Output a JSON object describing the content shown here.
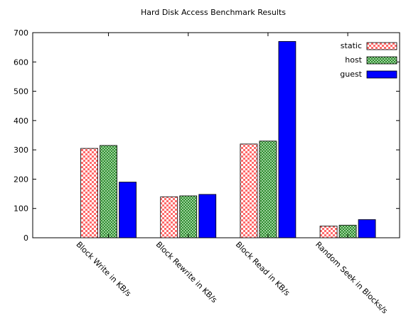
{
  "chart_data": {
    "type": "bar",
    "title": "Hard Disk Access Benchmark Results",
    "xlabel": "",
    "ylabel": "",
    "ylim": [
      0,
      700
    ],
    "yticks": [
      0,
      100,
      200,
      300,
      400,
      500,
      600,
      700
    ],
    "grid": false,
    "legend_position": "top-right",
    "categories": [
      "Block Write in KB/s",
      "Block Rewrite  in KB/s",
      "Block Read  in KB/s",
      "Random Seek in Blocks/s"
    ],
    "series": [
      {
        "name": "static",
        "values": [
          305,
          140,
          320,
          40
        ],
        "color": "#ff6b6b",
        "pattern": "checker-red"
      },
      {
        "name": "host",
        "values": [
          315,
          143,
          330,
          43
        ],
        "color": "#2e8b2e",
        "pattern": "checker-green"
      },
      {
        "name": "guest",
        "values": [
          190,
          148,
          670,
          62
        ],
        "color": "#0000ff",
        "pattern": "solid"
      }
    ]
  }
}
